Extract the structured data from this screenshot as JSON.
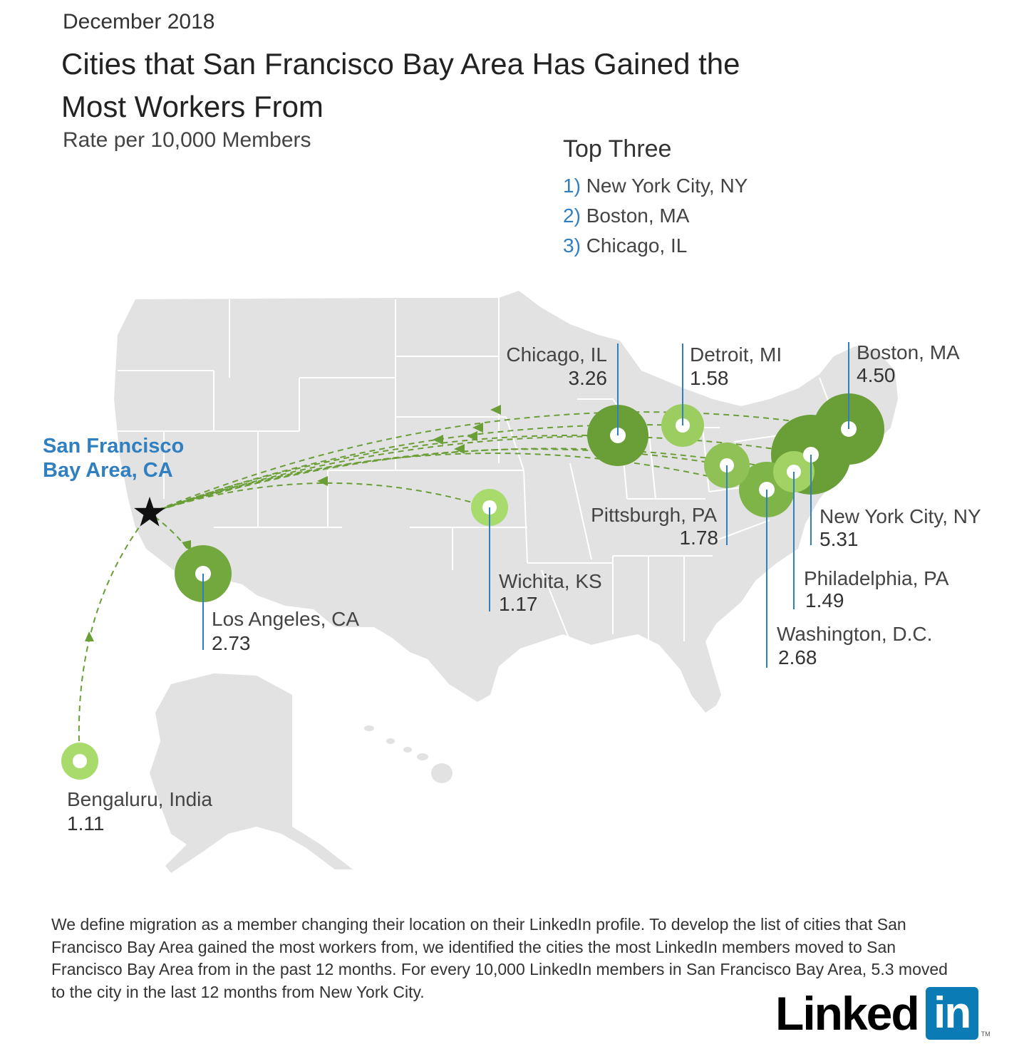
{
  "header": {
    "date": "December 2018",
    "title": "Cities that San Francisco Bay Area Has Gained the Most Workers From",
    "subtitle": "Rate per 10,000 Members"
  },
  "top_three": {
    "heading": "Top Three",
    "items": [
      {
        "num": "1)",
        "name": "New York City, NY"
      },
      {
        "num": "2)",
        "name": "Boston, MA"
      },
      {
        "num": "3)",
        "name": "Chicago, IL"
      }
    ]
  },
  "destination": {
    "line1": "San Francisco",
    "line2": "Bay Area, CA"
  },
  "colors": {
    "accent_blue": "#2f7fc1",
    "green_dark": "#6a9e36",
    "green_mid": "#7fb548",
    "green_light": "#a8db6c",
    "land": "#e2e2e2"
  },
  "cities": [
    {
      "name": "New York City, NY",
      "value": "5.31"
    },
    {
      "name": "Boston, MA",
      "value": "4.50"
    },
    {
      "name": "Chicago, IL",
      "value": "3.26"
    },
    {
      "name": "Los Angeles, CA",
      "value": "2.73"
    },
    {
      "name": "Washington, D.C.",
      "value": "2.68"
    },
    {
      "name": "Pittsburgh, PA",
      "value": "1.78"
    },
    {
      "name": "Detroit, MI",
      "value": "1.58"
    },
    {
      "name": "Philadelphia, PA",
      "value": "1.49"
    },
    {
      "name": "Wichita, KS",
      "value": "1.17"
    },
    {
      "name": "Bengaluru, India",
      "value": "1.11"
    }
  ],
  "footnote": "We define migration as a member changing their location on their LinkedIn profile. To develop the list of cities that San Francisco Bay Area gained the most workers from, we identified the cities the most LinkedIn members moved to San Francisco Bay Area from in the past 12 months. For every 10,000 LinkedIn members in San Francisco Bay Area, 5.3 moved to the city in the last 12 months from New York City.",
  "logo": {
    "word": "Linked",
    "box": "in",
    "tm": "TM"
  }
}
